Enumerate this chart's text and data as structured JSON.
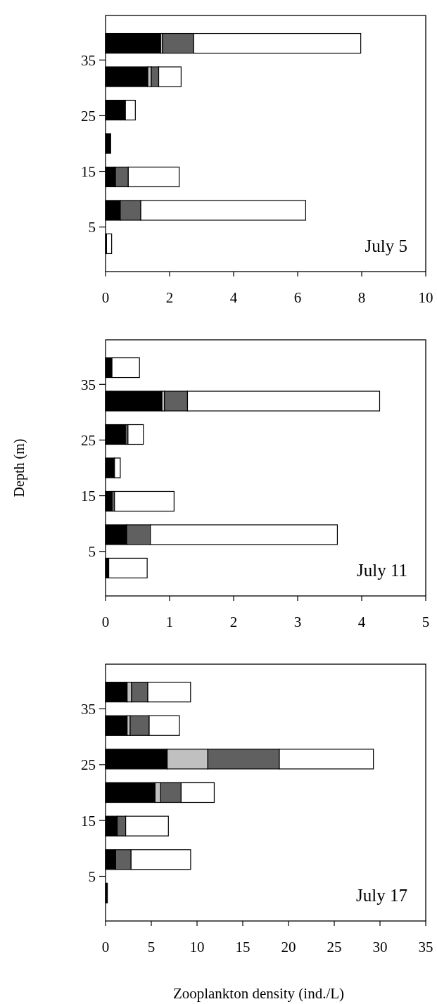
{
  "chart_data": [
    {
      "type": "bar",
      "orientation": "horizontal",
      "stacked": true,
      "x": [
        2,
        8,
        14,
        20,
        26,
        32,
        38
      ],
      "xlim": [
        0,
        10
      ],
      "xticks": [
        0,
        2,
        4,
        6,
        8,
        10
      ],
      "ylim": [
        -3,
        43
      ],
      "yticks": [
        5,
        15,
        25,
        35
      ],
      "annotations": [
        "July 5"
      ],
      "series": [
        {
          "color": "#000000",
          "values": [
            0.03,
            0.46,
            0.31,
            0.16,
            0.62,
            1.32,
            1.72
          ]
        },
        {
          "color": "#c0c0c0",
          "values": [
            0,
            0,
            0,
            0,
            0,
            0.11,
            0.06
          ]
        },
        {
          "color": "#606060",
          "values": [
            0,
            0.64,
            0.4,
            0,
            0,
            0.23,
            0.97
          ]
        },
        {
          "color": "#ffffff",
          "values": [
            0.16,
            5.15,
            1.59,
            0,
            0.31,
            0.7,
            5.22
          ]
        }
      ]
    },
    {
      "type": "bar",
      "orientation": "horizontal",
      "stacked": true,
      "x": [
        2,
        8,
        14,
        20,
        26,
        32,
        38
      ],
      "xlim": [
        0,
        5
      ],
      "xticks": [
        0,
        1,
        2,
        3,
        4,
        5
      ],
      "ylim": [
        -3,
        43
      ],
      "yticks": [
        5,
        15,
        25,
        35
      ],
      "ylabel": "Depth (m)",
      "annotations": [
        "July 11"
      ],
      "series": [
        {
          "color": "#000000",
          "values": [
            0.05,
            0.33,
            0.1,
            0.14,
            0.31,
            0.88,
            0.1
          ]
        },
        {
          "color": "#c0c0c0",
          "values": [
            0,
            0,
            0,
            0,
            0,
            0.04,
            0
          ]
        },
        {
          "color": "#606060",
          "values": [
            0,
            0.37,
            0.04,
            0,
            0.04,
            0.36,
            0
          ]
        },
        {
          "color": "#ffffff",
          "values": [
            0.6,
            2.92,
            0.93,
            0.09,
            0.24,
            3.0,
            0.43
          ]
        }
      ]
    },
    {
      "type": "bar",
      "orientation": "horizontal",
      "stacked": true,
      "x": [
        2,
        8,
        14,
        20,
        26,
        32,
        38
      ],
      "xlim": [
        0,
        35
      ],
      "xticks": [
        0,
        5,
        10,
        15,
        20,
        25,
        30,
        35
      ],
      "ylim": [
        -3,
        43
      ],
      "yticks": [
        5,
        15,
        25,
        35
      ],
      "xlabel": "Zooplankton density (ind./L)",
      "annotations": [
        "July 17"
      ],
      "series": [
        {
          "color": "#000000",
          "values": [
            0.2,
            1.1,
            1.28,
            5.41,
            6.74,
            2.36,
            2.36
          ]
        },
        {
          "color": "#c0c0c0",
          "values": [
            0,
            0,
            0,
            0.62,
            4.44,
            0.33,
            0.49
          ]
        },
        {
          "color": "#606060",
          "values": [
            0,
            1.69,
            0.92,
            2.23,
            7.82,
            2.08,
            1.77
          ]
        },
        {
          "color": "#ffffff",
          "values": [
            0,
            6.51,
            4.67,
            3.62,
            10.28,
            3.31,
            4.67
          ]
        }
      ]
    }
  ]
}
